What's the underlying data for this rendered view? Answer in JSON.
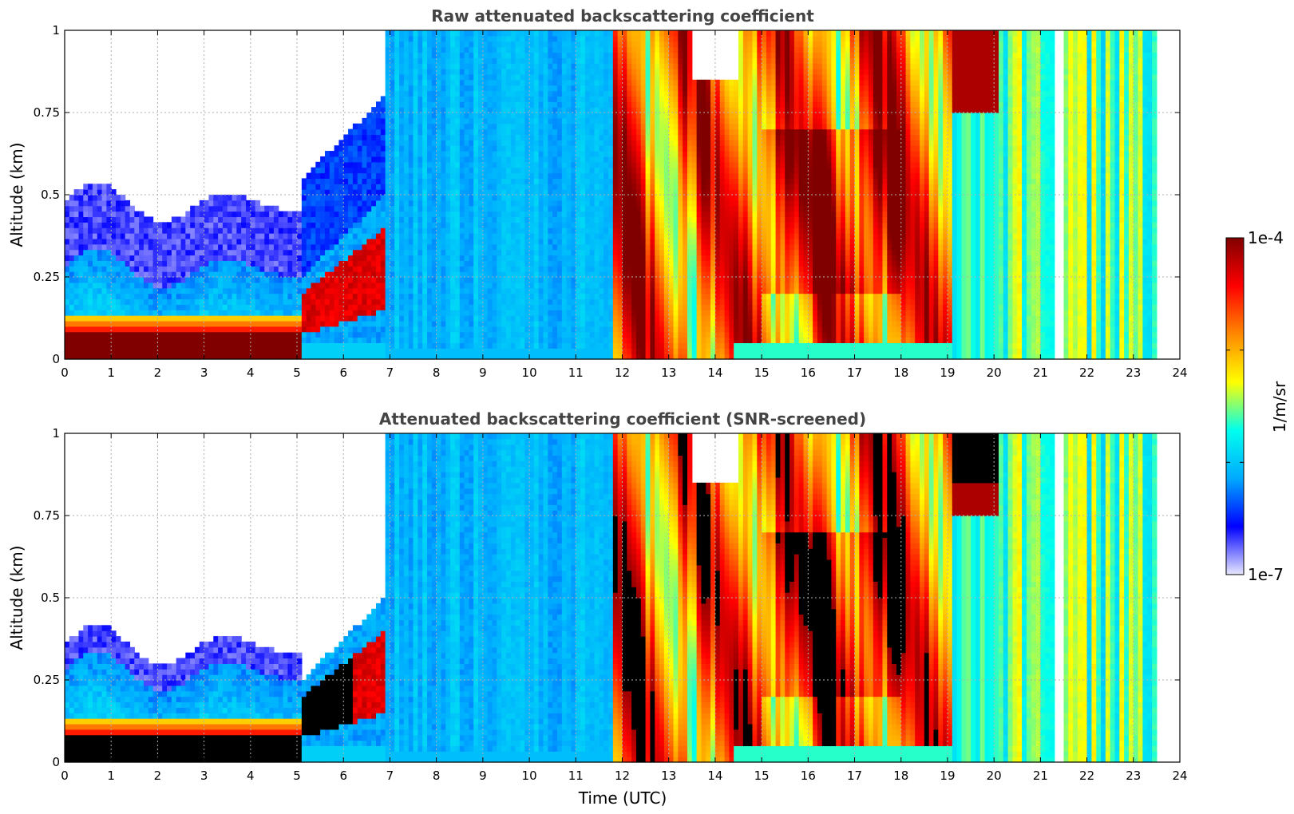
{
  "chart_data": [
    {
      "type": "heatmap",
      "title": "Raw attenuated backscattering coefficient",
      "xlabel": "",
      "ylabel": "Altitude (km)",
      "xlim": [
        0,
        24
      ],
      "ylim": [
        0,
        1
      ],
      "x_ticks": [
        "0",
        "1",
        "2",
        "3",
        "4",
        "5",
        "6",
        "7",
        "8",
        "9",
        "10",
        "11",
        "12",
        "13",
        "14",
        "15",
        "16",
        "17",
        "18",
        "19",
        "20",
        "21",
        "22",
        "23",
        "24"
      ],
      "y_ticks": [
        "0",
        "0.25",
        "0.5",
        "0.75",
        "1"
      ],
      "grid": true,
      "screened": false,
      "data_gap_hours": [
        [
          21.3,
          21.5
        ],
        [
          23.55,
          24
        ]
      ]
    },
    {
      "type": "heatmap",
      "title": "Attenuated backscattering coefficient (SNR-screened)",
      "xlabel": "Time (UTC)",
      "ylabel": "Altitude (km)",
      "xlim": [
        0,
        24
      ],
      "ylim": [
        0,
        1
      ],
      "x_ticks": [
        "0",
        "1",
        "2",
        "3",
        "4",
        "5",
        "6",
        "7",
        "8",
        "9",
        "10",
        "11",
        "12",
        "13",
        "14",
        "15",
        "16",
        "17",
        "18",
        "19",
        "20",
        "21",
        "22",
        "23",
        "24"
      ],
      "y_ticks": [
        "0",
        "0.25",
        "0.5",
        "0.75",
        "1"
      ],
      "grid": true,
      "screened": true,
      "data_gap_hours": [
        [
          21.3,
          21.5
        ],
        [
          23.55,
          24
        ]
      ]
    }
  ],
  "colorbar": {
    "label": "1/m/sr",
    "max_label": "1e-4",
    "min_label": "1e-7",
    "scale": "log",
    "colormap": "jet",
    "colors": [
      "#e8e8ff",
      "#0000ff",
      "#00aaff",
      "#00ffee",
      "#ffff00",
      "#ff8800",
      "#ff0000",
      "#800000"
    ]
  }
}
